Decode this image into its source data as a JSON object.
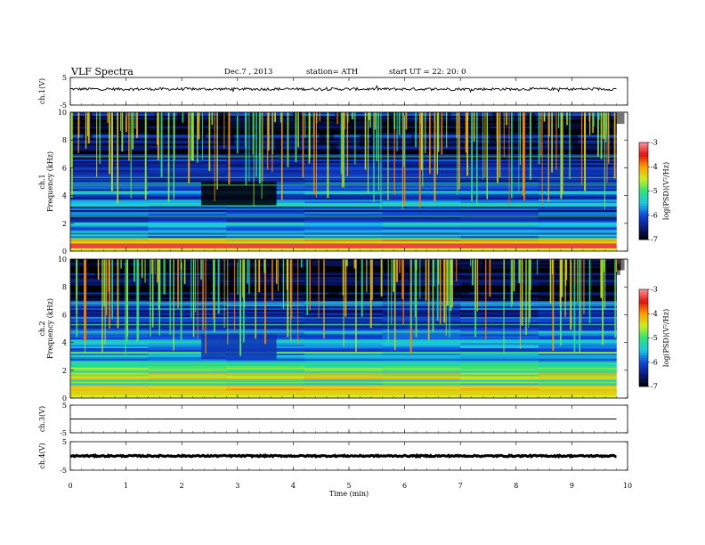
{
  "header": {
    "title": "VLF  Spectra",
    "date": "Dec.7  , 2013",
    "station": "station= ATH",
    "start": "start  UT =    22: 20: 0"
  },
  "chart_data": [
    {
      "id": "ch1_waveform",
      "type": "line",
      "ylabel": "ch.1(V)",
      "ylim": [
        -5,
        5
      ],
      "y_ticks": [
        "5",
        "-5"
      ],
      "baseline": 0.8,
      "noise_amplitude": 0.5
    },
    {
      "id": "ch1_spectrogram",
      "type": "heatmap",
      "ylabel": "ch.1\nFrequency  (kHz)",
      "ylabel_lines": [
        "ch.1",
        "Frequency  (kHz)"
      ],
      "ylim": [
        0,
        10
      ],
      "y_ticks": [
        "0",
        "2",
        "4",
        "6",
        "8",
        "10"
      ],
      "colorbar": {
        "label": "log(PSD)(V²/Hz)",
        "range": [
          -7,
          -3
        ],
        "ticks": [
          "-3",
          "-4",
          "-5",
          "-6",
          "-7"
        ]
      },
      "background_profile": [
        {
          "f": [
            0.2,
            0.5
          ],
          "v": -3.4
        },
        {
          "f": [
            0.5,
            0.9
          ],
          "v": -4.6
        },
        {
          "f": [
            0.9,
            2.0
          ],
          "v": -5.7
        },
        {
          "f": [
            2.0,
            5.0
          ],
          "v": -6.1
        },
        {
          "f": [
            5.0,
            7.0
          ],
          "v": -6.4
        },
        {
          "f": [
            7.0,
            10.0
          ],
          "v": -6.7
        }
      ],
      "dark_block": {
        "time": [
          2.35,
          3.7
        ],
        "freq": [
          3.3,
          5.0
        ],
        "v": -7.0
      }
    },
    {
      "id": "ch2_spectrogram",
      "type": "heatmap",
      "ylabel": "ch.2\nFrequency  (kHz)",
      "ylabel_lines": [
        "ch.2",
        "Frequency  (kHz)"
      ],
      "ylim": [
        0,
        10
      ],
      "y_ticks": [
        "0",
        "2",
        "4",
        "6",
        "8",
        "10"
      ],
      "colorbar": {
        "label": "log(PSD)(V²/Hz)",
        "range": [
          -7,
          -3
        ],
        "ticks": [
          "-3",
          "-4",
          "-5",
          "-6",
          "-7"
        ]
      },
      "background_profile": [
        {
          "f": [
            0.2,
            0.9
          ],
          "v": -4.3
        },
        {
          "f": [
            0.9,
            2.4
          ],
          "v": -5.1
        },
        {
          "f": [
            2.4,
            5.0
          ],
          "v": -5.7
        },
        {
          "f": [
            5.0,
            7.0
          ],
          "v": -6.3
        },
        {
          "f": [
            7.0,
            10.0
          ],
          "v": -6.8
        }
      ],
      "dark_block": {
        "time": [
          2.35,
          3.7
        ],
        "freq": [
          2.8,
          4.6
        ],
        "v": -6.2
      }
    },
    {
      "id": "ch3_waveform",
      "type": "line",
      "ylabel": "ch.3(V)",
      "ylim": [
        -5,
        5
      ],
      "y_ticks": [
        "5",
        "-5"
      ],
      "baseline": 0.0,
      "noise_amplitude": 0.02
    },
    {
      "id": "ch4_waveform",
      "type": "line",
      "ylabel": "ch.4(V)",
      "ylim": [
        -5,
        5
      ],
      "y_ticks": [
        "5",
        "-5"
      ],
      "baseline": 0.0,
      "noise_amplitude": 0.25
    }
  ],
  "x_axis": {
    "label": "Time  (min)",
    "range": [
      0,
      10
    ],
    "data_end": 9.8,
    "ticks": [
      "0",
      "1",
      "2",
      "3",
      "4",
      "5",
      "6",
      "7",
      "8",
      "9",
      "10"
    ]
  },
  "colors": {
    "colormap": [
      "#000000",
      "#0a1a7a",
      "#1046d8",
      "#19c8e6",
      "#2ee07a",
      "#c8f01e",
      "#ffa000",
      "#e01010",
      "#ff9090"
    ],
    "trace": "#000000"
  }
}
